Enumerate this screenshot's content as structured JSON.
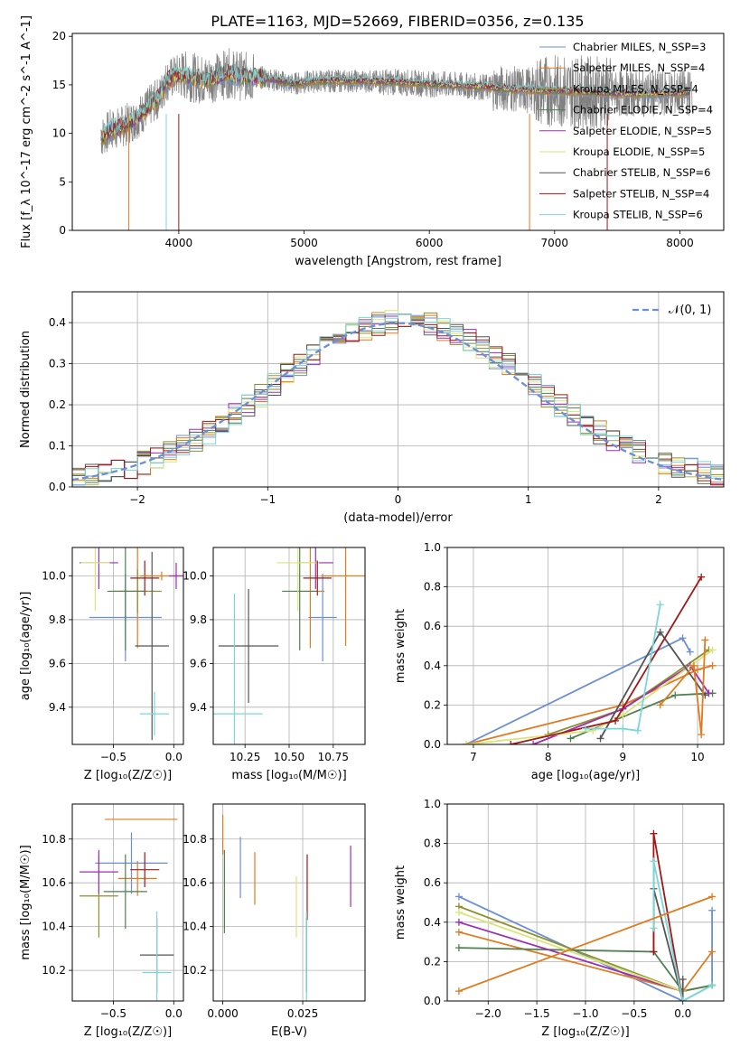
{
  "figure_title": "PLATE=1163, MJD=52669, FIBERID=0356, z=0.135",
  "series_colors": [
    "#6a8fd8",
    "#e07b1f",
    "#8e8e2a",
    "#4f7f4f",
    "#9b2fb0",
    "#d9e57a",
    "#555555",
    "#a01818",
    "#7ad7d7"
  ],
  "chart_data": [
    {
      "id": "spectrum",
      "type": "line",
      "title": "PLATE=1163, MJD=52669, FIBERID=0356, z=0.135",
      "xlabel": "wavelength [Angstrom, rest frame]",
      "ylabel": "Flux [f_λ 10^-17 erg cm^-2 s^-1 A^-1]",
      "xlim": [
        3150,
        8350
      ],
      "ylim": [
        0,
        20.3
      ],
      "xticks": [
        "4000",
        "5000",
        "6000",
        "7000",
        "8000"
      ],
      "yticks": [
        "0",
        "5",
        "10",
        "15",
        "20"
      ],
      "data_color": "#808080",
      "legend_position": "upper-right",
      "legend": [
        "Chabrier MILES, N_SSP=3",
        "Salpeter MILES, N_SSP=4",
        "Kroupa MILES, N_SSP=4",
        "Chabrier ELODIE, N_SSP=4",
        "Salpeter ELODIE, N_SSP=5",
        "Kroupa ELODIE, N_SSP=5",
        "Chabrier STELIB, N_SSP=6",
        "Salpeter STELIB, N_SSP=4",
        "Kroupa STELIB, N_SSP=6"
      ],
      "continuum": {
        "x": [
          3380,
          3450,
          3550,
          3650,
          3750,
          3850,
          3900,
          4000,
          4100,
          4200,
          4300,
          4400,
          4500,
          4700,
          4900,
          5100,
          5400,
          5700,
          6000,
          6300,
          6600,
          6900,
          7200,
          7500,
          7800,
          8100
        ],
        "y": [
          9.6,
          10.3,
          10.7,
          11.4,
          12.6,
          13.8,
          15.4,
          16.1,
          15.8,
          15.5,
          15.8,
          16.2,
          15.9,
          15.7,
          15.1,
          15.4,
          15.4,
          15.3,
          15.1,
          14.9,
          14.6,
          14.4,
          14.3,
          14.1,
          14.1,
          14.2
        ]
      }
    },
    {
      "id": "residuals",
      "type": "histogram",
      "xlabel": "(data-model)/error",
      "ylabel": "Normed distribution",
      "xlim": [
        -2.5,
        2.5
      ],
      "ylim": [
        0,
        0.475
      ],
      "xticks": [
        "−2",
        "−1",
        "0",
        "1",
        "2"
      ],
      "yticks": [
        "0.0",
        "0.1",
        "0.2",
        "0.3",
        "0.4"
      ],
      "grid": true,
      "legend_position": "upper-right",
      "gaussian_label": "𝒩(0, 1)",
      "gaussian_color": "#6a8fd8",
      "bin_start": -2.5,
      "bin_width": 0.1
    },
    {
      "id": "age-vs-Z",
      "type": "errorbar",
      "xlabel": "Z [log₁₀(Z/Z☉)]",
      "ylabel": "age  [log₁₀(age/yr)]",
      "xlim": [
        -0.84,
        0.08
      ],
      "ylim": [
        9.23,
        10.13
      ],
      "xticks": [
        "−0.5",
        "0.0"
      ],
      "yticks": [
        "9.4",
        "9.6",
        "9.8",
        "10.0"
      ],
      "grid": true,
      "points": [
        {
          "c": 0,
          "x": -0.4,
          "xe": 0.3,
          "y": 9.81,
          "ye": 0.2
        },
        {
          "c": 1,
          "x": -0.3,
          "xe": 0.15,
          "y": 9.93,
          "ye": 0.26
        },
        {
          "c": 2,
          "x": -0.3,
          "xe": 0.2,
          "y": 9.93,
          "ye": 0.1
        },
        {
          "c": 3,
          "x": -0.4,
          "xe": 0.15,
          "y": 9.93,
          "ye": 0.27
        },
        {
          "c": 4,
          "x": -0.62,
          "xe": 0.16,
          "y": 10.06,
          "ye": 0.12
        },
        {
          "c": 5,
          "x": -0.65,
          "xe": 0.12,
          "y": 10.06,
          "ye": 0.22
        },
        {
          "c": 6,
          "x": -0.18,
          "xe": 0.14,
          "y": 9.68,
          "ye": 0.43
        },
        {
          "c": 7,
          "x": -0.24,
          "xe": 0.12,
          "y": 9.99,
          "ye": 0.08
        },
        {
          "c": 8,
          "x": -0.16,
          "xe": 0.12,
          "y": 9.37,
          "ye": 0.1
        },
        {
          "c": 1,
          "x": -0.1,
          "xe": 0.18,
          "y": 10.0,
          "ye": 0.02
        },
        {
          "c": 4,
          "x": 0.02,
          "xe": 0.06,
          "y": 10.0,
          "ye": 0.06
        }
      ]
    },
    {
      "id": "age-vs-mass",
      "type": "errorbar",
      "xlabel": "mass [log₁₀(M/M☉)]",
      "ylabel": "",
      "xlim": [
        10.07,
        10.93
      ],
      "ylim": [
        9.23,
        10.13
      ],
      "xticks": [
        "10.25",
        "10.50",
        "10.75"
      ],
      "yticks": [
        "9.4",
        "9.6",
        "9.8",
        "10.0"
      ],
      "grid": true,
      "points": [
        {
          "c": 0,
          "x": 10.69,
          "xe": 0.08,
          "y": 9.81,
          "ye": 0.2
        },
        {
          "c": 1,
          "x": 10.62,
          "xe": 0.08,
          "y": 9.93,
          "ye": 0.26
        },
        {
          "c": 3,
          "x": 10.56,
          "xe": 0.1,
          "y": 9.93,
          "ye": 0.27
        },
        {
          "c": 4,
          "x": 10.65,
          "xe": 0.1,
          "y": 10.06,
          "ye": 0.12
        },
        {
          "c": 5,
          "x": 10.55,
          "xe": 0.12,
          "y": 10.06,
          "ye": 0.22
        },
        {
          "c": 6,
          "x": 10.27,
          "xe": 0.17,
          "y": 9.68,
          "ye": 0.26
        },
        {
          "c": 7,
          "x": 10.66,
          "xe": 0.08,
          "y": 9.99,
          "ye": 0.08
        },
        {
          "c": 8,
          "x": 10.19,
          "xe": 0.16,
          "y": 9.37,
          "ye": 0.55
        },
        {
          "c": 1,
          "x": 10.82,
          "xe": 0.14,
          "y": 10.0,
          "ye": 0.32
        }
      ]
    },
    {
      "id": "weight-vs-age",
      "type": "line",
      "xlabel": "age  [log₁₀(age/yr)]",
      "ylabel": "mass weight",
      "xlim": [
        6.65,
        10.35
      ],
      "ylim": [
        0,
        1
      ],
      "xticks": [
        "7",
        "8",
        "9",
        "10"
      ],
      "yticks": [
        "0.0",
        "0.2",
        "0.4",
        "0.6",
        "0.8",
        "1.0"
      ],
      "grid": true,
      "series": [
        {
          "c": 0,
          "x": [
            6.9,
            9.8,
            9.9
          ],
          "y": [
            0.0,
            0.54,
            0.47
          ]
        },
        {
          "c": 1,
          "x": [
            6.9,
            9.0,
            10.0,
            10.2
          ],
          "y": [
            0.0,
            0.2,
            0.38,
            0.4
          ]
        },
        {
          "c": 2,
          "x": [
            8.0,
            9.0,
            10.15
          ],
          "y": [
            0.05,
            0.18,
            0.48
          ]
        },
        {
          "c": 3,
          "x": [
            8.3,
            9.7,
            10.2
          ],
          "y": [
            0.03,
            0.25,
            0.26
          ]
        },
        {
          "c": 4,
          "x": [
            7.8,
            9.0,
            9.9,
            10.15
          ],
          "y": [
            0.0,
            0.18,
            0.4,
            0.26
          ]
        },
        {
          "c": 5,
          "x": [
            6.9,
            8.6,
            9.0,
            10.2
          ],
          "y": [
            0.0,
            0.07,
            0.15,
            0.48
          ]
        },
        {
          "c": 6,
          "x": [
            8.7,
            9.5,
            10.1
          ],
          "y": [
            0.03,
            0.57,
            0.25
          ]
        },
        {
          "c": 7,
          "x": [
            7.5,
            8.9,
            10.05
          ],
          "y": [
            0.0,
            0.12,
            0.85
          ]
        },
        {
          "c": 8,
          "x": [
            8.5,
            9.0,
            9.2,
            9.5
          ],
          "y": [
            0.08,
            0.08,
            0.07,
            0.71
          ]
        },
        {
          "c": 1,
          "x": [
            9.5,
            9.95,
            10.05,
            10.1
          ],
          "y": [
            0.2,
            0.4,
            0.05,
            0.53
          ]
        }
      ]
    },
    {
      "id": "mass-vs-Z",
      "type": "errorbar",
      "xlabel": "Z [log₁₀(Z/Z☉)]",
      "ylabel": "mass [log₁₀(M/M☉)]",
      "xlim": [
        -0.84,
        0.08
      ],
      "ylim": [
        10.06,
        10.96
      ],
      "xticks": [
        "−0.5",
        "0.0"
      ],
      "yticks": [
        "10.2",
        "10.4",
        "10.6",
        "10.8"
      ],
      "grid": true,
      "points": [
        {
          "c": 0,
          "x": -0.35,
          "xe": 0.3,
          "y": 10.69,
          "ye": 0.14
        },
        {
          "c": 1,
          "x": -0.3,
          "xe": 0.16,
          "y": 10.62,
          "ye": 0.08
        },
        {
          "c": 2,
          "x": -0.62,
          "xe": 0.16,
          "y": 10.54,
          "ye": 0.19
        },
        {
          "c": 3,
          "x": -0.4,
          "xe": 0.18,
          "y": 10.56,
          "ye": 0.17
        },
        {
          "c": 4,
          "x": -0.62,
          "xe": 0.16,
          "y": 10.65,
          "ye": 0.1
        },
        {
          "c": 6,
          "x": -0.14,
          "xe": 0.14,
          "y": 10.27,
          "ye": 0.17
        },
        {
          "c": 7,
          "x": -0.24,
          "xe": 0.12,
          "y": 10.66,
          "ye": 0.08
        },
        {
          "c": 8,
          "x": -0.14,
          "xe": 0.12,
          "y": 10.19,
          "ye": 0.28
        },
        {
          "c": 1,
          "x": -0.27,
          "xe": 0.3,
          "y": 10.89,
          "ye": 0.0
        }
      ]
    },
    {
      "id": "mass-vs-EBV",
      "type": "errorbar",
      "xlabel": "E(B-V)",
      "ylabel": "",
      "xlim": [
        -0.003,
        0.0445
      ],
      "ylim": [
        10.06,
        10.96
      ],
      "xticks": [
        "0.000",
        "0.025"
      ],
      "yticks": [
        "10.2",
        "10.4",
        "10.6",
        "10.8"
      ],
      "grid": true,
      "points": [
        {
          "c": 1,
          "x": 0.0,
          "xe": 0,
          "y": 10.82,
          "ye": 0.09
        },
        {
          "c": 3,
          "x": 0.0005,
          "xe": 0,
          "y": 10.56,
          "ye": 0.19
        },
        {
          "c": 0,
          "x": 0.0055,
          "xe": 0,
          "y": 10.67,
          "ye": 0.14
        },
        {
          "c": 1,
          "x": 0.01,
          "xe": 0,
          "y": 10.62,
          "ye": 0.12
        },
        {
          "c": 5,
          "x": 0.023,
          "xe": 0,
          "y": 10.49,
          "ye": 0.14
        },
        {
          "c": 6,
          "x": 0.0262,
          "xe": 0,
          "y": 10.27,
          "ye": 0.17
        },
        {
          "c": 7,
          "x": 0.0264,
          "xe": 0,
          "y": 10.58,
          "ye": 0.15
        },
        {
          "c": 8,
          "x": 0.0262,
          "xe": 0,
          "y": 10.19,
          "ye": 0.28
        },
        {
          "c": 4,
          "x": 0.04,
          "xe": 0,
          "y": 10.63,
          "ye": 0.14
        }
      ]
    },
    {
      "id": "weight-vs-Z",
      "type": "line",
      "xlabel": "Z [log₁₀(Z/Z☉)]",
      "ylabel": "mass weight",
      "xlim": [
        -2.42,
        0.42
      ],
      "ylim": [
        0,
        1
      ],
      "xticks": [
        "−2.0",
        "−1.5",
        "−1.0",
        "−0.5",
        "0.0"
      ],
      "yticks": [
        "0.0",
        "0.2",
        "0.4",
        "0.6",
        "0.8",
        "1.0"
      ],
      "grid": true,
      "series": [
        {
          "c": 0,
          "x": [
            -2.3,
            0.0,
            0.3,
            0.3
          ],
          "y": [
            0.53,
            0.0,
            0.08,
            0.46
          ]
        },
        {
          "c": 1,
          "x": [
            -2.3,
            0.0,
            0.3
          ],
          "y": [
            0.35,
            0.05,
            0.25
          ]
        },
        {
          "c": 2,
          "x": [
            -2.3,
            0.0,
            0.3
          ],
          "y": [
            0.48,
            0.05,
            0.08
          ]
        },
        {
          "c": 3,
          "x": [
            -2.3,
            -0.3,
            0.0,
            0.3
          ],
          "y": [
            0.27,
            0.25,
            0.05,
            0.08
          ]
        },
        {
          "c": 4,
          "x": [
            -2.3,
            0.0
          ],
          "y": [
            0.4,
            0.05
          ]
        },
        {
          "c": 5,
          "x": [
            -2.3,
            0.0
          ],
          "y": [
            0.45,
            0.05
          ]
        },
        {
          "c": 6,
          "x": [
            -0.3,
            -0.3,
            0.0,
            0.0
          ],
          "y": [
            0.25,
            0.57,
            0.0,
            0.11
          ]
        },
        {
          "c": 7,
          "x": [
            -0.3,
            -0.3,
            0.0
          ],
          "y": [
            0.25,
            0.85,
            0.0
          ]
        },
        {
          "c": 8,
          "x": [
            -0.3,
            -0.3,
            0.0,
            0.3
          ],
          "y": [
            0.37,
            0.71,
            0.0,
            0.08
          ]
        },
        {
          "c": 1,
          "x": [
            -2.3,
            0.3
          ],
          "y": [
            0.05,
            0.53
          ]
        }
      ]
    }
  ]
}
